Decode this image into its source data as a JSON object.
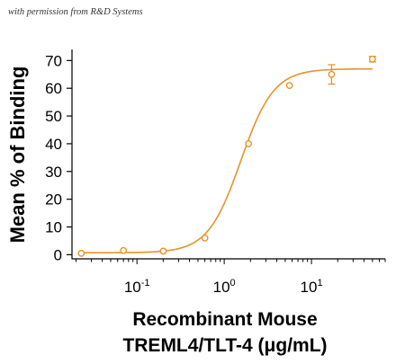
{
  "watermark": "with permission from R&D Systems",
  "chart_data": {
    "type": "scatter",
    "title": "",
    "xlabel_line1": "Recombinant Mouse",
    "xlabel_line2": "TREML4/TLT-4 (μg/mL)",
    "ylabel": "Mean % of Binding",
    "xscale": "log",
    "xlim": [
      0.018,
      70
    ],
    "ylim": [
      -1.5,
      74
    ],
    "yticks": [
      0,
      10,
      20,
      30,
      40,
      50,
      60,
      70
    ],
    "xticks": [
      {
        "value": 0.1,
        "base": "10",
        "exp": "-1"
      },
      {
        "value": 1,
        "base": "10",
        "exp": "0"
      },
      {
        "value": 10,
        "base": "10",
        "exp": "1"
      }
    ],
    "grid": false,
    "color": "#E8922A",
    "points": [
      {
        "x": 0.023,
        "y": 0.5,
        "err": 0
      },
      {
        "x": 0.07,
        "y": 1.5,
        "err": 0
      },
      {
        "x": 0.2,
        "y": 1.3,
        "err": 0
      },
      {
        "x": 0.6,
        "y": 6,
        "err": 0
      },
      {
        "x": 1.9,
        "y": 40,
        "err": 0.5
      },
      {
        "x": 5.6,
        "y": 61,
        "err": 0.5
      },
      {
        "x": 17,
        "y": 65,
        "err": 3.5
      },
      {
        "x": 50,
        "y": 70.5,
        "err": 1
      }
    ],
    "fit": {
      "bottom": 0.7,
      "top": 67,
      "ec50": 1.55,
      "hill": 2.3
    }
  }
}
